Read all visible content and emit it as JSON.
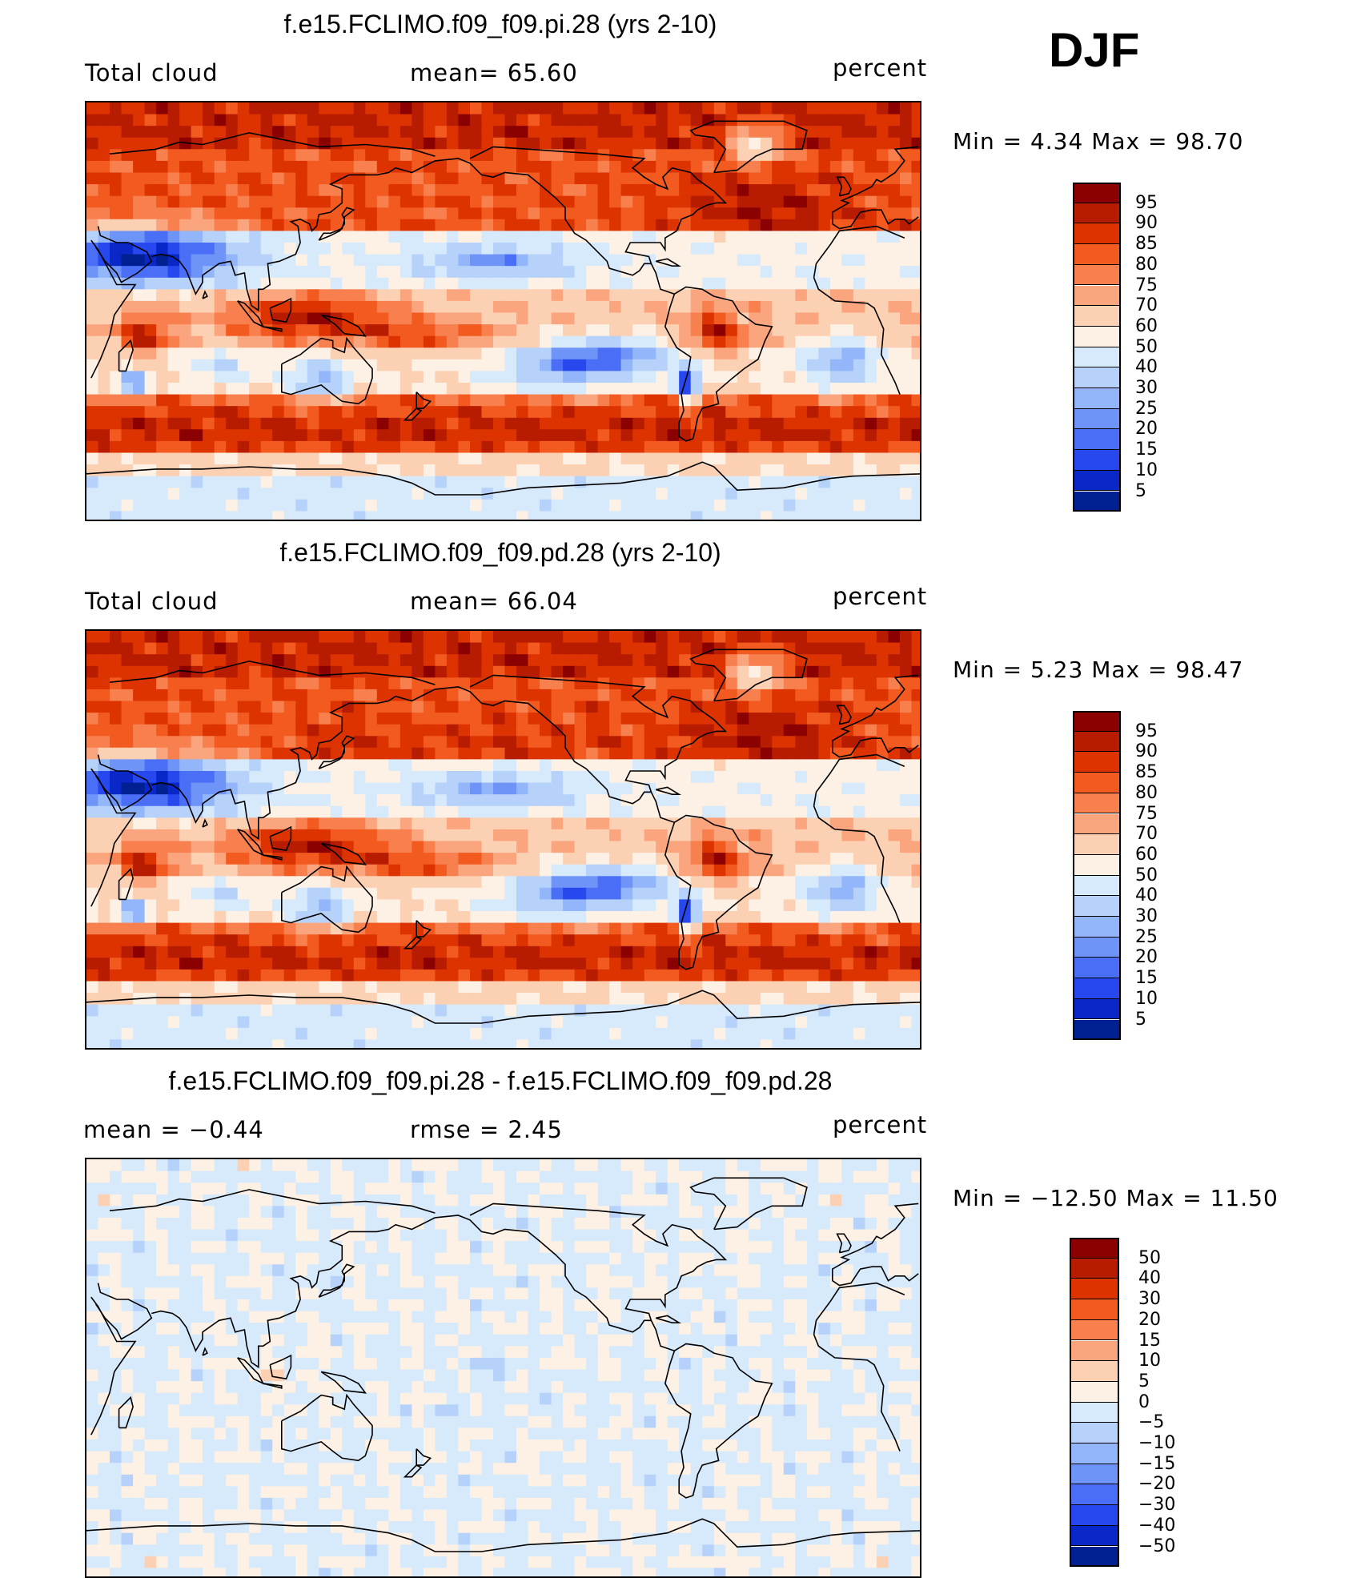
{
  "season": "DJF",
  "panels": [
    {
      "id": "pi",
      "title": "f.e15.FCLIMO.f09_f09.pi.28 (yrs 2-10)",
      "left_label": "Total cloud",
      "center_label": "mean=   65.60",
      "right_label": "percent",
      "minmax": "Min =    4.34  Max =   98.70",
      "field": "total-cloud"
    },
    {
      "id": "pd",
      "title": "f.e15.FCLIMO.f09_f09.pd.28 (yrs 2-10)",
      "left_label": "Total cloud",
      "center_label": "mean=   66.04",
      "right_label": "percent",
      "minmax": "Min =    5.23  Max =   98.47",
      "field": "total-cloud"
    },
    {
      "id": "diff",
      "title": "f.e15.FCLIMO.f09_f09.pi.28 - f.e15.FCLIMO.f09_f09.pd.28",
      "left_label": "mean =   −0.44",
      "center_label": "rmse =     2.45",
      "right_label": "percent",
      "minmax": "Min = −12.50  Max =    11.50",
      "field": "difference"
    }
  ],
  "legends": {
    "cloud": {
      "levels": [
        "95",
        "90",
        "85",
        "80",
        "75",
        "70",
        "60",
        "50",
        "40",
        "30",
        "25",
        "20",
        "15",
        "10",
        "5"
      ],
      "colors": [
        "#8b0000",
        "#b81c00",
        "#dc3300",
        "#f25a20",
        "#f87f4e",
        "#fba57f",
        "#fcd0b2",
        "#fdf0e4",
        "#d7eafb",
        "#b6d2fb",
        "#93b6fa",
        "#6f94f8",
        "#4a6ef5",
        "#2648ee",
        "#0a28c8",
        "#001f90"
      ]
    },
    "diff": {
      "levels": [
        "50",
        "40",
        "30",
        "20",
        "15",
        "10",
        "5",
        "0",
        "−5",
        "−10",
        "−15",
        "−20",
        "−30",
        "−40",
        "−50"
      ],
      "colors": [
        "#8b0000",
        "#b81c00",
        "#dc3300",
        "#f25a20",
        "#f87f4e",
        "#fba57f",
        "#fcd0b2",
        "#fdf0e4",
        "#d7eafb",
        "#b6d2fb",
        "#93b6fa",
        "#6f94f8",
        "#4a6ef5",
        "#2648ee",
        "#0a28c8",
        "#001f90"
      ]
    }
  }
}
